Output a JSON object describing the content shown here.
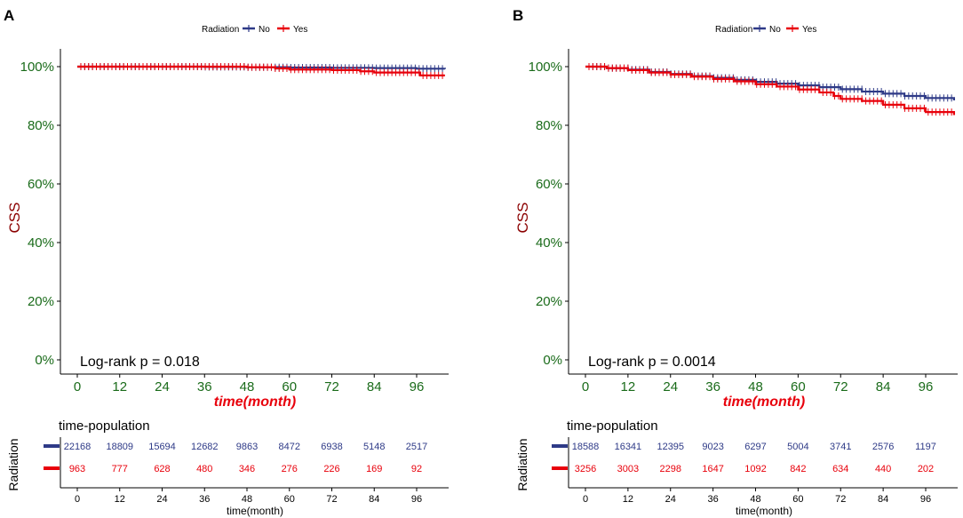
{
  "colors": {
    "no": "#2e3a87",
    "yes": "#e8000b",
    "ytick": "#1a6b1a",
    "ylabel": "#8b0000",
    "xlabel": "#e8000b"
  },
  "legend": {
    "title": "Radiation",
    "no": "No",
    "yes": "Yes"
  },
  "chart_data": [
    {
      "type": "line",
      "panel": "A",
      "title": "",
      "xlabel": "time(month)",
      "ylabel": "CSS",
      "xlim": [
        0,
        104
      ],
      "ylim": [
        0,
        1
      ],
      "xticks": [
        0,
        12,
        24,
        36,
        48,
        60,
        72,
        84,
        96
      ],
      "yticks": [
        0,
        0.2,
        0.4,
        0.6,
        0.8,
        1.0
      ],
      "ytick_labels": [
        "0%",
        "20%",
        "40%",
        "60%",
        "80%",
        "100%"
      ],
      "annotation": "Log-rank   p = 0.018",
      "series": [
        {
          "name": "No",
          "x": [
            0,
            12,
            24,
            36,
            48,
            60,
            72,
            84,
            96,
            104
          ],
          "values": [
            1.0,
            1.0,
            1.0,
            0.999,
            0.998,
            0.997,
            0.996,
            0.995,
            0.993,
            0.992
          ]
        },
        {
          "name": "Yes",
          "x": [
            0,
            12,
            24,
            36,
            48,
            56,
            60,
            72,
            80,
            84,
            96,
            97,
            104
          ],
          "values": [
            1.0,
            1.0,
            1.0,
            1.0,
            0.998,
            0.994,
            0.99,
            0.988,
            0.984,
            0.98,
            0.98,
            0.97,
            0.97
          ]
        }
      ],
      "risk_table": {
        "title": "time-population",
        "ylabel": "Radiation",
        "xlabel": "time(month)",
        "times": [
          0,
          12,
          24,
          36,
          48,
          60,
          72,
          84,
          96
        ],
        "no": [
          22168,
          18809,
          15694,
          12682,
          9863,
          8472,
          6938,
          5148,
          2517
        ],
        "yes": [
          963,
          777,
          628,
          480,
          346,
          276,
          226,
          169,
          92
        ]
      }
    },
    {
      "type": "line",
      "panel": "B",
      "title": "",
      "xlabel": "time(month)",
      "ylabel": "CSS",
      "xlim": [
        0,
        104
      ],
      "ylim": [
        0,
        1
      ],
      "xticks": [
        0,
        12,
        24,
        36,
        48,
        60,
        72,
        84,
        96
      ],
      "yticks": [
        0,
        0.2,
        0.4,
        0.6,
        0.8,
        1.0
      ],
      "ytick_labels": [
        "0%",
        "20%",
        "40%",
        "60%",
        "80%",
        "100%"
      ],
      "annotation": "Log-rank    p = 0.0014",
      "series": [
        {
          "name": "No",
          "x": [
            0,
            6,
            12,
            18,
            24,
            30,
            36,
            42,
            48,
            54,
            60,
            66,
            72,
            78,
            84,
            90,
            96,
            104
          ],
          "values": [
            1.0,
            0.995,
            0.99,
            0.982,
            0.975,
            0.968,
            0.962,
            0.955,
            0.948,
            0.942,
            0.936,
            0.93,
            0.923,
            0.915,
            0.908,
            0.9,
            0.893,
            0.885
          ]
        },
        {
          "name": "Yes",
          "x": [
            0,
            6,
            12,
            18,
            24,
            30,
            36,
            42,
            48,
            54,
            60,
            66,
            70,
            72,
            78,
            84,
            90,
            96,
            102,
            104
          ],
          "values": [
            1.0,
            0.995,
            0.988,
            0.98,
            0.973,
            0.966,
            0.958,
            0.95,
            0.94,
            0.932,
            0.922,
            0.912,
            0.9,
            0.89,
            0.883,
            0.87,
            0.858,
            0.845,
            0.845,
            0.835
          ]
        }
      ],
      "risk_table": {
        "title": "time-population",
        "ylabel": "Radiation",
        "xlabel": "time(month)",
        "times": [
          0,
          12,
          24,
          36,
          48,
          60,
          72,
          84,
          96
        ],
        "no": [
          18588,
          16341,
          12395,
          9023,
          6297,
          5004,
          3741,
          2576,
          1197
        ],
        "yes": [
          3256,
          3003,
          2298,
          1647,
          1092,
          842,
          634,
          440,
          202
        ]
      }
    }
  ]
}
